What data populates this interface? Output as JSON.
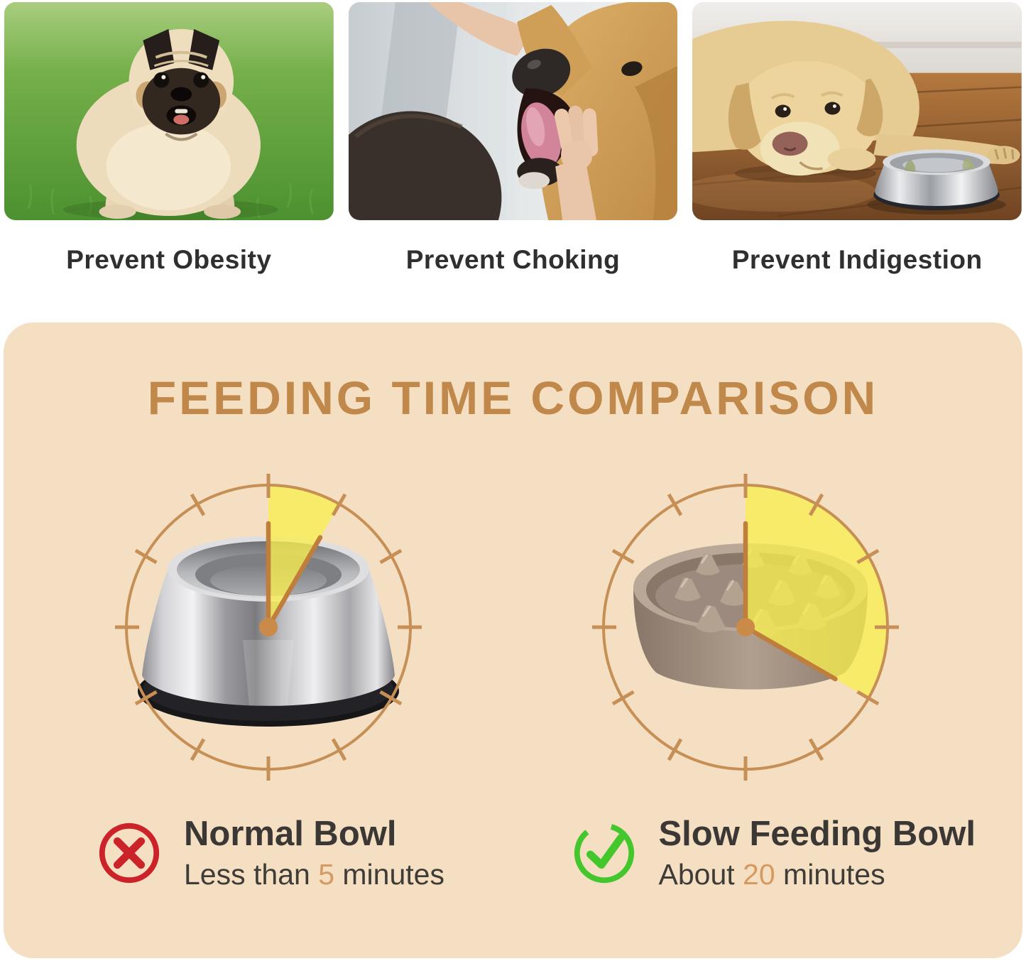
{
  "benefits": {
    "items": [
      {
        "caption": "Prevent Obesity",
        "image": "overweight-pug-on-grass"
      },
      {
        "caption": "Prevent Choking",
        "image": "checking-dogs-mouth"
      },
      {
        "caption": "Prevent Indigestion",
        "image": "dog-lying-beside-steel-bowl"
      }
    ]
  },
  "comparison": {
    "title": "FEEDING TIME COMPARISON",
    "clocks": [
      {
        "bowl": "normal-stainless-steel-bowl",
        "wedge_start_deg": 0,
        "wedge_end_deg": 30
      },
      {
        "bowl": "slow-feeding-bowl",
        "wedge_start_deg": 0,
        "wedge_end_deg": 120
      }
    ],
    "verdicts": [
      {
        "icon": "cross-icon",
        "name": "Normal Bowl",
        "detail_prefix": "Less than ",
        "detail_value": "5",
        "detail_suffix": " minutes"
      },
      {
        "icon": "check-icon",
        "name": "Slow Feeding Bowl",
        "detail_prefix": "About ",
        "detail_value": "20",
        "detail_suffix": " minutes"
      }
    ],
    "colors": {
      "panel": "#f5dfc2",
      "title": "#c0884a",
      "dial": "#c68f55",
      "hand": "#bf7e3b",
      "center_dot": "#ca8a48",
      "wedge": "rgba(248,238,80,0.78)",
      "value": "#d69a60",
      "cross": "#cc2229",
      "check": "#44c72c",
      "caption_text": "#2f2f2f",
      "verdict_text": "#3a3734"
    }
  }
}
